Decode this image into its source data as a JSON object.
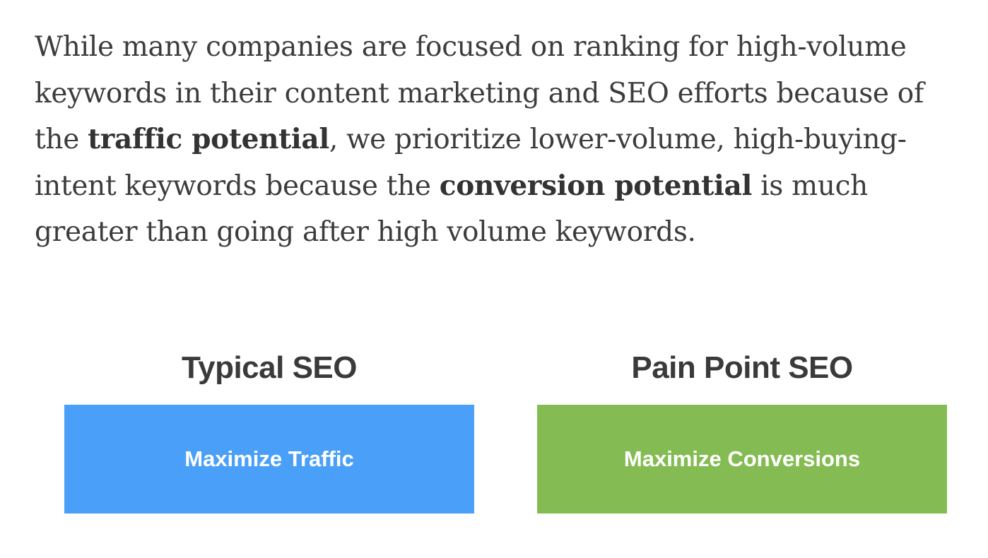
{
  "paragraph": {
    "part1": "While many companies are focused on ranking for high-volume keywords in their content marketing and SEO efforts because of the ",
    "bold1": "traffic potential",
    "part2": ", we prioritize lower-volume, high-buying-intent keywords because the ",
    "bold2": "conversion potential",
    "part3": " is much greater than going after high volume keywords."
  },
  "comparison": {
    "left": {
      "title": "Typical SEO",
      "box_label": "Maximize Traffic",
      "color": "#4aa0f8"
    },
    "right": {
      "title": "Pain Point SEO",
      "box_label": "Maximize Conversions",
      "color": "#84bc53"
    }
  }
}
